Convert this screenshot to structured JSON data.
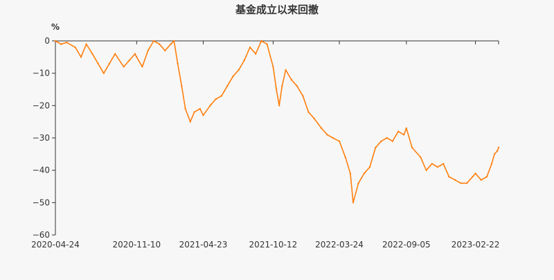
{
  "chart_data": {
    "type": "line",
    "title": "基金成立以来回撤",
    "ylabel": "%",
    "xlabel": "",
    "ylim": [
      -60,
      0
    ],
    "yticks": [
      0,
      -10,
      -20,
      -30,
      -40,
      -50,
      -60
    ],
    "xticks": [
      "2020-04-24",
      "2020-11-10",
      "2021-04-23",
      "2021-10-12",
      "2022-03-24",
      "2022-09-05",
      "2023-02-22"
    ],
    "x_range": [
      "2020-04-24",
      "2023-04-20"
    ],
    "grid": false,
    "series": [
      {
        "color": "#ff7f0e",
        "points": [
          [
            "2020-04-24",
            0
          ],
          [
            "2020-05-08",
            -1
          ],
          [
            "2020-05-22",
            -0.5
          ],
          [
            "2020-06-12",
            -2
          ],
          [
            "2020-06-26",
            -5
          ],
          [
            "2020-07-09",
            -1
          ],
          [
            "2020-07-24",
            -4
          ],
          [
            "2020-08-07",
            -7
          ],
          [
            "2020-08-21",
            -10
          ],
          [
            "2020-09-04",
            -7
          ],
          [
            "2020-09-18",
            -4
          ],
          [
            "2020-10-09",
            -8
          ],
          [
            "2020-10-23",
            -6
          ],
          [
            "2020-11-06",
            -4
          ],
          [
            "2020-11-10",
            -5
          ],
          [
            "2020-11-24",
            -8
          ],
          [
            "2020-12-08",
            -3
          ],
          [
            "2020-12-22",
            0
          ],
          [
            "2021-01-05",
            -1
          ],
          [
            "2021-01-19",
            -3
          ],
          [
            "2021-02-02",
            -1
          ],
          [
            "2021-02-10",
            0
          ],
          [
            "2021-02-19",
            -7
          ],
          [
            "2021-03-01",
            -14
          ],
          [
            "2021-03-10",
            -21
          ],
          [
            "2021-03-22",
            -25
          ],
          [
            "2021-04-01",
            -22
          ],
          [
            "2021-04-15",
            -21
          ],
          [
            "2021-04-23",
            -23
          ],
          [
            "2021-05-10",
            -20
          ],
          [
            "2021-05-24",
            -18
          ],
          [
            "2021-06-07",
            -17
          ],
          [
            "2021-06-21",
            -14
          ],
          [
            "2021-07-05",
            -11
          ],
          [
            "2021-07-19",
            -9
          ],
          [
            "2021-08-02",
            -6
          ],
          [
            "2021-08-16",
            -2
          ],
          [
            "2021-08-30",
            -4
          ],
          [
            "2021-09-13",
            0
          ],
          [
            "2021-09-27",
            -1
          ],
          [
            "2021-10-12",
            -8
          ],
          [
            "2021-10-20",
            -15
          ],
          [
            "2021-10-27",
            -20
          ],
          [
            "2021-11-03",
            -14
          ],
          [
            "2021-11-12",
            -9
          ],
          [
            "2021-11-26",
            -12
          ],
          [
            "2021-12-10",
            -14
          ],
          [
            "2021-12-24",
            -17
          ],
          [
            "2022-01-07",
            -22
          ],
          [
            "2022-01-21",
            -24
          ],
          [
            "2022-02-08",
            -27
          ],
          [
            "2022-02-22",
            -29
          ],
          [
            "2022-03-08",
            -30
          ],
          [
            "2022-03-24",
            -31
          ],
          [
            "2022-04-08",
            -36
          ],
          [
            "2022-04-20",
            -41
          ],
          [
            "2022-04-27",
            -50
          ],
          [
            "2022-05-10",
            -44
          ],
          [
            "2022-05-24",
            -41
          ],
          [
            "2022-06-07",
            -39
          ],
          [
            "2022-06-21",
            -33
          ],
          [
            "2022-07-05",
            -31
          ],
          [
            "2022-07-19",
            -30
          ],
          [
            "2022-08-02",
            -31
          ],
          [
            "2022-08-16",
            -28
          ],
          [
            "2022-08-30",
            -29
          ],
          [
            "2022-09-05",
            -27
          ],
          [
            "2022-09-19",
            -33
          ],
          [
            "2022-10-10",
            -36
          ],
          [
            "2022-10-24",
            -40
          ],
          [
            "2022-11-07",
            -38
          ],
          [
            "2022-11-21",
            -39
          ],
          [
            "2022-12-05",
            -38
          ],
          [
            "2022-12-19",
            -42
          ],
          [
            "2023-01-03",
            -43
          ],
          [
            "2023-01-17",
            -44
          ],
          [
            "2023-02-01",
            -44
          ],
          [
            "2023-02-15",
            -42
          ],
          [
            "2023-02-22",
            -41
          ],
          [
            "2023-03-08",
            -43
          ],
          [
            "2023-03-22",
            -42
          ],
          [
            "2023-04-03",
            -38
          ],
          [
            "2023-04-10",
            -35
          ],
          [
            "2023-04-17",
            -34
          ],
          [
            "2023-04-20",
            -33
          ]
        ]
      }
    ]
  }
}
